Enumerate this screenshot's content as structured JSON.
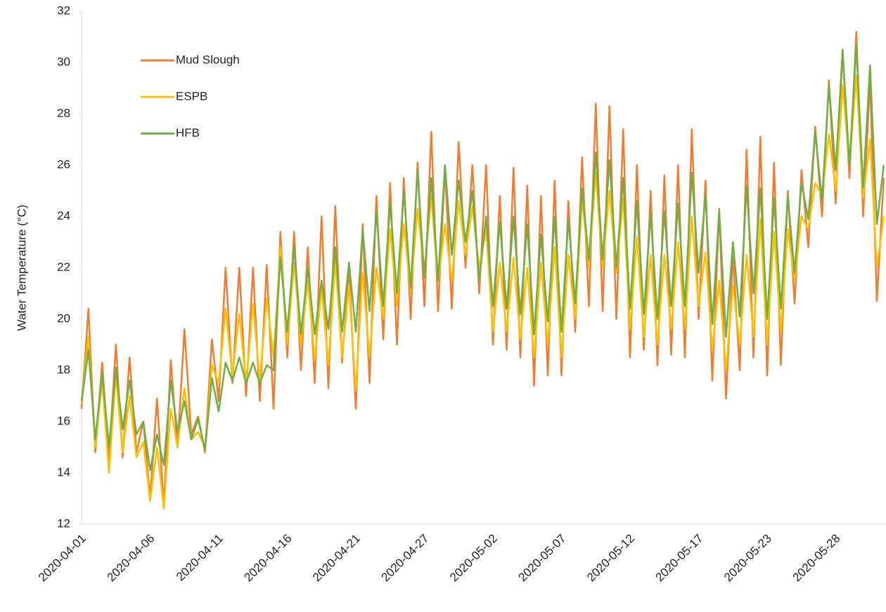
{
  "chart_data": {
    "type": "line",
    "y_label": "Water Temperature (°C)",
    "categories": [
      "2020-04-01",
      null,
      null,
      null,
      null,
      null,
      null,
      null,
      null,
      null,
      "2020-04-06",
      null,
      null,
      null,
      null,
      null,
      null,
      null,
      null,
      null,
      "2020-04-11",
      null,
      null,
      null,
      null,
      null,
      null,
      null,
      null,
      null,
      "2020-04-16",
      null,
      null,
      null,
      null,
      null,
      null,
      null,
      null,
      null,
      "2020-04-21",
      null,
      null,
      null,
      null,
      null,
      null,
      null,
      null,
      null,
      "2020-04-27",
      null,
      null,
      null,
      null,
      null,
      null,
      null,
      null,
      null,
      "2020-05-02",
      null,
      null,
      null,
      null,
      null,
      null,
      null,
      null,
      null,
      "2020-05-07",
      null,
      null,
      null,
      null,
      null,
      null,
      null,
      null,
      null,
      "2020-05-12",
      null,
      null,
      null,
      null,
      null,
      null,
      null,
      null,
      null,
      "2020-05-17",
      null,
      null,
      null,
      null,
      null,
      null,
      null,
      null,
      null,
      "2020-05-23",
      null,
      null,
      null,
      null,
      null,
      null,
      null,
      null,
      null,
      "2020-05-28",
      null,
      null,
      null,
      null,
      null,
      null,
      null
    ],
    "series": [
      {
        "name": "Mud Slough",
        "color": "#ed7d31",
        "values": [
          16.5,
          20.4,
          14.8,
          18.3,
          14.5,
          19,
          14.6,
          18.5,
          14.8,
          16,
          13,
          16.9,
          12.7,
          18.4,
          15,
          19.6,
          15.5,
          16.2,
          14.8,
          19.2,
          16.8,
          22,
          17.5,
          22,
          17,
          22,
          16.8,
          22.1,
          16.5,
          23.4,
          18.5,
          23.4,
          18,
          22.8,
          17.5,
          24,
          17.3,
          24.4,
          18.3,
          22,
          16.5,
          23.7,
          17.5,
          24.8,
          19.2,
          25.3,
          19,
          25.5,
          20,
          26.1,
          20.5,
          27.3,
          20.3,
          25.9,
          20.4,
          26.9,
          22,
          26,
          21,
          26,
          19,
          24.8,
          18.8,
          25.9,
          18.5,
          25.2,
          17.4,
          24.8,
          17.8,
          25.4,
          17.8,
          24.6,
          19.5,
          26.3,
          20.5,
          28.4,
          20.3,
          28.3,
          20,
          27.4,
          18.5,
          26,
          18.8,
          25,
          18.2,
          25.6,
          18.6,
          26,
          18.5,
          27.4,
          20,
          25.4,
          17.6,
          24.3,
          16.9,
          22.5,
          18,
          26.6,
          18.5,
          27.1,
          17.8,
          26.1,
          18.2,
          25,
          20.6,
          25.8,
          22.8,
          27.5,
          24,
          29.3,
          24.5,
          30.5,
          25.5,
          31.2,
          24,
          29.3,
          20.7,
          25.5
        ]
      },
      {
        "name": "ESPB",
        "color": "#ffc000",
        "values": [
          16.7,
          19.3,
          15,
          17.6,
          14,
          17.8,
          14.8,
          17,
          14.6,
          15.2,
          12.9,
          15,
          12.6,
          16.5,
          15,
          17.3,
          15.3,
          15.6,
          15,
          18.2,
          17.5,
          20.4,
          17.8,
          20.2,
          17.5,
          20.6,
          17.6,
          20.8,
          18.5,
          22.8,
          19,
          22.2,
          19,
          21.5,
          18.4,
          21.2,
          18.2,
          22.3,
          18.5,
          21.3,
          17.2,
          21.8,
          18.5,
          22,
          20,
          23.5,
          20.5,
          23.7,
          21,
          24.3,
          21.8,
          24.8,
          21.4,
          23.7,
          21.5,
          24.6,
          22.5,
          24.4,
          22,
          23.5,
          19.5,
          22.2,
          19.5,
          22.4,
          19.2,
          22,
          18.5,
          22.2,
          19,
          22.8,
          18.5,
          22.5,
          20,
          24.7,
          22,
          25.7,
          22,
          25,
          21.8,
          24.7,
          19.6,
          23.2,
          19.3,
          22.5,
          19,
          22.5,
          19.6,
          23,
          19.6,
          24,
          20.5,
          22.6,
          18.8,
          21.5,
          18,
          21.3,
          19,
          22.5,
          19.3,
          23.9,
          19,
          23.4,
          19.5,
          23.5,
          21.5,
          24,
          23.5,
          25.3,
          24.8,
          27.2,
          25,
          29.1,
          26,
          29.5,
          24.7,
          27,
          22,
          24
        ]
      },
      {
        "name": "HFB",
        "color": "#70ad47",
        "values": [
          16.8,
          18.8,
          15.3,
          17.9,
          15,
          18.1,
          15.7,
          17.6,
          15.5,
          16,
          14.1,
          15.5,
          14.3,
          17.6,
          15.6,
          16.8,
          15.3,
          16.1,
          14.9,
          17.7,
          16.4,
          18.3,
          17.6,
          18.5,
          17.5,
          18.3,
          17.5,
          18.2,
          18,
          22.4,
          19.5,
          22.8,
          19.4,
          22,
          19.4,
          21.5,
          19.6,
          22.8,
          19.5,
          22.2,
          19.5,
          23.5,
          20.3,
          24.2,
          20.5,
          24.5,
          21,
          25,
          21.2,
          25.8,
          21.6,
          25.5,
          21.5,
          26,
          22.5,
          25.4,
          23,
          25,
          21.5,
          24,
          20.5,
          23.8,
          20.4,
          24,
          20.2,
          23.7,
          19.4,
          23.3,
          19.9,
          24,
          19.5,
          23.9,
          20.6,
          25.1,
          22.3,
          26.5,
          22.3,
          26.2,
          22,
          25.5,
          20.4,
          24.6,
          20.2,
          24.1,
          20,
          24.2,
          20.5,
          24.5,
          20.5,
          25.7,
          21.8,
          24.8,
          19.8,
          24.2,
          19.3,
          23,
          20.1,
          25.2,
          21,
          25.1,
          20,
          24.7,
          20.4,
          24.8,
          21.8,
          25.3,
          23.9,
          27.3,
          24.6,
          29.1,
          25.8,
          30.5,
          26,
          30.7,
          25.1,
          29.9,
          23.7,
          26
        ]
      }
    ],
    "ylim": [
      12,
      32
    ],
    "yticks": [
      12,
      14,
      16,
      18,
      20,
      22,
      24,
      26,
      28,
      30,
      32
    ],
    "grid": false,
    "legend": "upper left"
  }
}
